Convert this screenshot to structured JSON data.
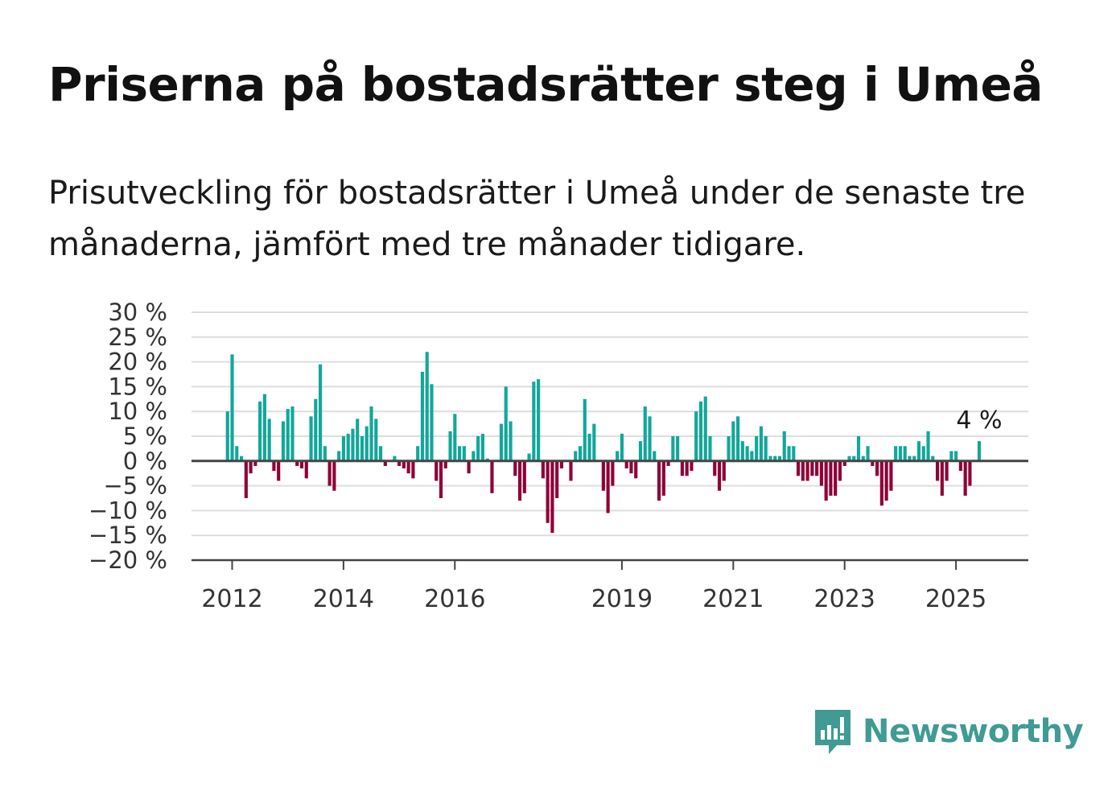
{
  "header": {
    "title": "Priserna på bostadsrätter steg i Umeå",
    "subtitle": "Prisutveckling för bostadsrätter i Umeå under de senaste tre månaderna, jämfört med tre månader tidigare."
  },
  "brand": {
    "name": "Newsworthy",
    "icon": "newsworthy-logo-icon",
    "color": "#3f9b93"
  },
  "colors": {
    "positive": "#12a79a",
    "negative": "#8f0037",
    "grid": "#dddddd",
    "axis": "#444444"
  },
  "chart_data": {
    "type": "bar",
    "title": "",
    "xlabel": "",
    "ylabel": "",
    "ylim": [
      -20,
      30
    ],
    "yticks": [
      30,
      25,
      20,
      15,
      10,
      5,
      0,
      -5,
      -10,
      -15,
      -20
    ],
    "ytick_labels": [
      "30 %",
      "25 %",
      "20 %",
      "15 %",
      "10 %",
      "5 %",
      "0 %",
      "−5 %",
      "−10 %",
      "−15 %",
      "−20 %"
    ],
    "xticks": [
      2012,
      2014,
      2016,
      2019,
      2021,
      2023,
      2025
    ],
    "xtick_labels": [
      "2012",
      "2014",
      "2016",
      "2019",
      "2021",
      "2023",
      "2025"
    ],
    "x_start": 2011.917,
    "x_step_months": 1,
    "grid": "horizontal",
    "annotation": {
      "label": "4 %",
      "target": "last"
    },
    "values": [
      10,
      21.5,
      3,
      1,
      -7.5,
      -2.5,
      -1,
      12,
      13.5,
      8.5,
      -2,
      -4,
      8,
      10.5,
      11,
      -1,
      -1.5,
      -3.5,
      9,
      12.5,
      19.5,
      3,
      -5,
      -6,
      2,
      5,
      5.5,
      6.5,
      8.5,
      5,
      7,
      11,
      8.5,
      3,
      -1,
      0,
      1,
      -1,
      -1.5,
      -2.5,
      -3.5,
      3,
      18,
      22,
      15.5,
      -4,
      -7.5,
      -1.5,
      6,
      9.5,
      3,
      3,
      -2.5,
      2,
      5,
      5.5,
      0.5,
      -6.5,
      0,
      7.5,
      15,
      8,
      -3,
      -8,
      -6.5,
      1.5,
      16,
      16.5,
      -3.5,
      -12.5,
      -14.5,
      -7.5,
      -1.5,
      0,
      -4,
      2,
      3,
      12.5,
      5.5,
      7.5,
      0,
      -6,
      -10.5,
      -5,
      2,
      5.5,
      -1.5,
      -2.5,
      -3.5,
      4,
      11,
      9,
      2,
      -8,
      -7,
      -1,
      5,
      5,
      -3,
      -3,
      -2,
      10,
      12,
      13,
      5,
      -3,
      -6,
      -4,
      5,
      8,
      9,
      4,
      3,
      2,
      5,
      7,
      5,
      1,
      1,
      1,
      6,
      3,
      3,
      -3,
      -4,
      -4,
      -3,
      -3,
      -5,
      -8,
      -7,
      -7,
      -4,
      -1,
      1,
      1,
      5,
      1,
      3,
      -1,
      -3,
      -9,
      -8,
      -6,
      3,
      3,
      3,
      1,
      1,
      4,
      3,
      6,
      1,
      -4,
      -7,
      -4,
      2,
      2,
      -2,
      -7,
      -5,
      0,
      4
    ]
  }
}
